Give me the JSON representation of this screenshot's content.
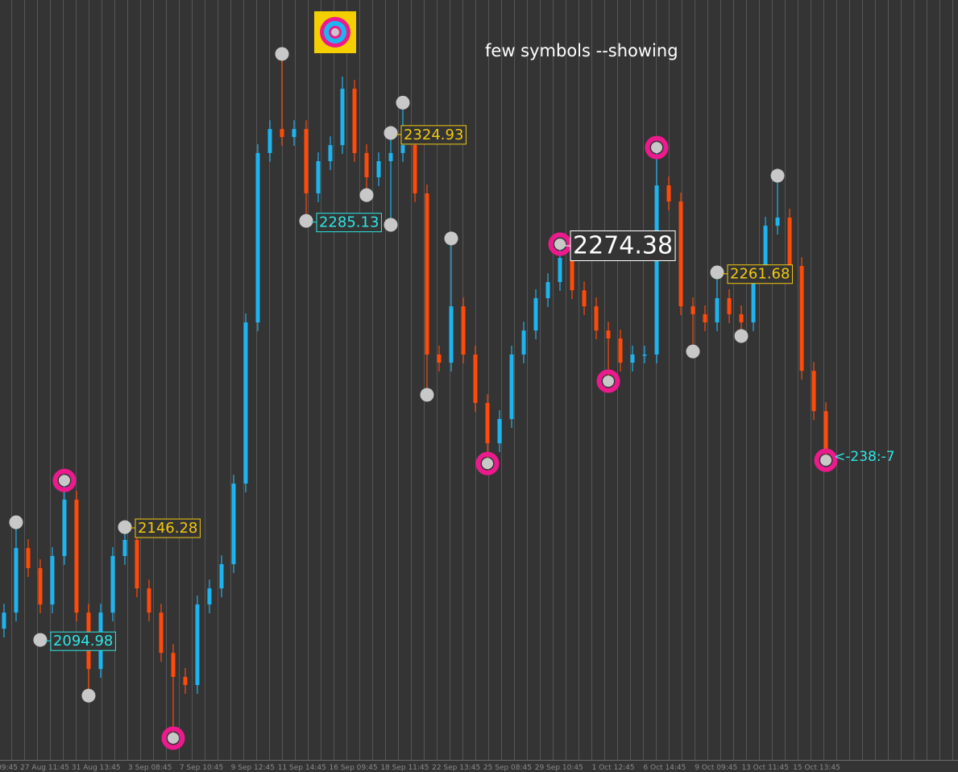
{
  "chart_data": {
    "type": "candlestick",
    "title": "few symbols  --showing",
    "xlim": [
      -0.33,
      78.93
    ],
    "ylim": [
      2042,
      2386
    ],
    "up_color": "#1eb4f0",
    "down_color": "#ff4a0a",
    "open": [
      2100.5,
      2107.8,
      2137.1,
      2128.0,
      2111.5,
      2133.5,
      2159.1,
      2107.8,
      2082.2,
      2107.8,
      2133.5,
      2140.8,
      2118.8,
      2107.8,
      2089.5,
      2078.6,
      2074.9,
      2111.5,
      2118.8,
      2129.8,
      2166.4,
      2239.6,
      2316.5,
      2327.4,
      2323.8,
      2327.4,
      2298.2,
      2312.8,
      2320.1,
      2345.7,
      2316.5,
      2305.5,
      2312.8,
      2316.5,
      2320.1,
      2298.2,
      2225.0,
      2221.3,
      2246.9,
      2225.0,
      2203.0,
      2184.7,
      2195.7,
      2225.0,
      2235.9,
      2250.6,
      2257.9,
      2268.9,
      2254.2,
      2246.9,
      2235.9,
      2232.3,
      2221.3,
      2225.0,
      2225.0,
      2301.8,
      2294.5,
      2246.9,
      2243.3,
      2239.6,
      2250.6,
      2243.3,
      2239.6,
      2261.6,
      2283.5,
      2287.2,
      2265.2,
      2217.6,
      2199.3
    ],
    "high": [
      2111.8,
      2146.0,
      2141.1,
      2132.0,
      2137.5,
      2166.4,
      2163.1,
      2111.8,
      2111.8,
      2137.5,
      2146.3,
      2144.8,
      2122.8,
      2111.8,
      2093.5,
      2082.6,
      2115.5,
      2122.8,
      2133.8,
      2170.4,
      2243.6,
      2320.5,
      2331.4,
      2361.5,
      2331.4,
      2331.4,
      2316.8,
      2324.1,
      2351.2,
      2349.7,
      2320.5,
      2316.8,
      2326.0,
      2339.4,
      2324.1,
      2302.2,
      2229.0,
      2277.7,
      2250.9,
      2229.0,
      2207.0,
      2199.7,
      2229.0,
      2239.9,
      2254.6,
      2261.9,
      2276.2,
      2272.9,
      2258.2,
      2250.9,
      2239.9,
      2236.3,
      2229.0,
      2229.0,
      2319.0,
      2305.8,
      2298.5,
      2250.9,
      2247.3,
      2262.3,
      2254.6,
      2247.3,
      2265.6,
      2287.5,
      2306.2,
      2291.2,
      2269.2,
      2221.6,
      2203.3
    ],
    "low": [
      2096.5,
      2103.8,
      2124.0,
      2107.5,
      2107.5,
      2129.5,
      2103.8,
      2071.3,
      2078.2,
      2103.8,
      2129.5,
      2114.8,
      2103.8,
      2085.5,
      2050.8,
      2070.9,
      2070.9,
      2107.5,
      2114.8,
      2125.8,
      2162.4,
      2235.6,
      2312.5,
      2319.8,
      2319.8,
      2285.7,
      2294.2,
      2308.8,
      2316.1,
      2312.5,
      2297.7,
      2301.5,
      2285.0,
      2312.5,
      2294.2,
      2205.6,
      2217.3,
      2217.3,
      2221.0,
      2199.0,
      2175.5,
      2180.7,
      2191.7,
      2221.0,
      2231.9,
      2246.6,
      2253.9,
      2250.2,
      2242.9,
      2231.9,
      2213.0,
      2217.3,
      2217.3,
      2221.0,
      2221.0,
      2290.5,
      2242.9,
      2226.4,
      2235.6,
      2235.6,
      2239.3,
      2233.4,
      2235.6,
      2257.6,
      2279.5,
      2261.2,
      2213.6,
      2195.3,
      2177.0
    ],
    "close": [
      2107.8,
      2137.1,
      2128.0,
      2111.5,
      2133.5,
      2159.1,
      2107.8,
      2082.2,
      2107.8,
      2133.5,
      2140.8,
      2118.8,
      2107.8,
      2089.5,
      2078.6,
      2074.9,
      2111.5,
      2118.8,
      2129.8,
      2166.4,
      2239.6,
      2316.5,
      2327.4,
      2323.8,
      2327.4,
      2298.2,
      2312.8,
      2320.1,
      2345.7,
      2316.5,
      2305.5,
      2312.8,
      2316.5,
      2320.1,
      2298.2,
      2225.0,
      2221.3,
      2246.9,
      2225.0,
      2203.0,
      2184.7,
      2195.7,
      2225.0,
      2235.9,
      2250.6,
      2257.9,
      2268.9,
      2254.2,
      2246.9,
      2235.9,
      2232.3,
      2221.3,
      2225.0,
      2225.0,
      2301.8,
      2294.5,
      2246.9,
      2243.3,
      2239.6,
      2250.6,
      2243.3,
      2239.6,
      2261.6,
      2283.5,
      2287.2,
      2265.2,
      2217.6,
      2199.3,
      2181.0
    ],
    "swing_points": {
      "color": "#c8c8c8",
      "x": [
        1,
        3,
        7,
        10,
        23,
        25,
        30,
        32,
        32,
        33,
        35,
        37,
        57,
        59,
        61,
        64
      ],
      "values": [
        2148.8,
        2095.4,
        2070.1,
        2146.6,
        2361.5,
        2285.7,
        2297.4,
        2325.6,
        2283.9,
        2339.4,
        2206.7,
        2277.7,
        2226.4,
        2262.3,
        2233.4,
        2306.2
      ]
    },
    "major_points": {
      "color": "#ec1a8c",
      "x": [
        5,
        14,
        40,
        46,
        50,
        54,
        68
      ],
      "values": [
        2167.8,
        2050.8,
        2175.5,
        2275.1,
        2212.9,
        2319.0,
        2177.0
      ]
    },
    "price_labels": [
      {
        "value": 2324.93,
        "x": 32,
        "color": "#f2c811"
      },
      {
        "value": 2285.13,
        "x": 25,
        "color": "#2ee6e6"
      },
      {
        "value": 2274.38,
        "x": 46,
        "color": "#ffffff"
      },
      {
        "value": 2261.68,
        "x": 59,
        "color": "#f2c811"
      },
      {
        "value": 2146.28,
        "x": 10,
        "color": "#f2c811"
      },
      {
        "value": 2094.98,
        "x": 3,
        "color": "#2ee6e6"
      }
    ],
    "annotation": "<-238:-7",
    "annotation_color": "#2ee6e6",
    "xtick_labels": [
      "09:45",
      "27 Aug 11:45",
      "31 Aug 13:45",
      "3 Sep 08:45",
      "7 Sep 10:45",
      "9 Sep 12:45",
      "11 Sep 14:45",
      "16 Sep 09:45",
      "18 Sep 11:45",
      "22 Sep 13:45",
      "25 Sep 08:45",
      "29 Sep 10:45",
      "1 Oct 12:45",
      "6 Oct 14:45",
      "9 Oct 09:45",
      "13 Oct 11:45",
      "15 Oct 13:45"
    ]
  }
}
